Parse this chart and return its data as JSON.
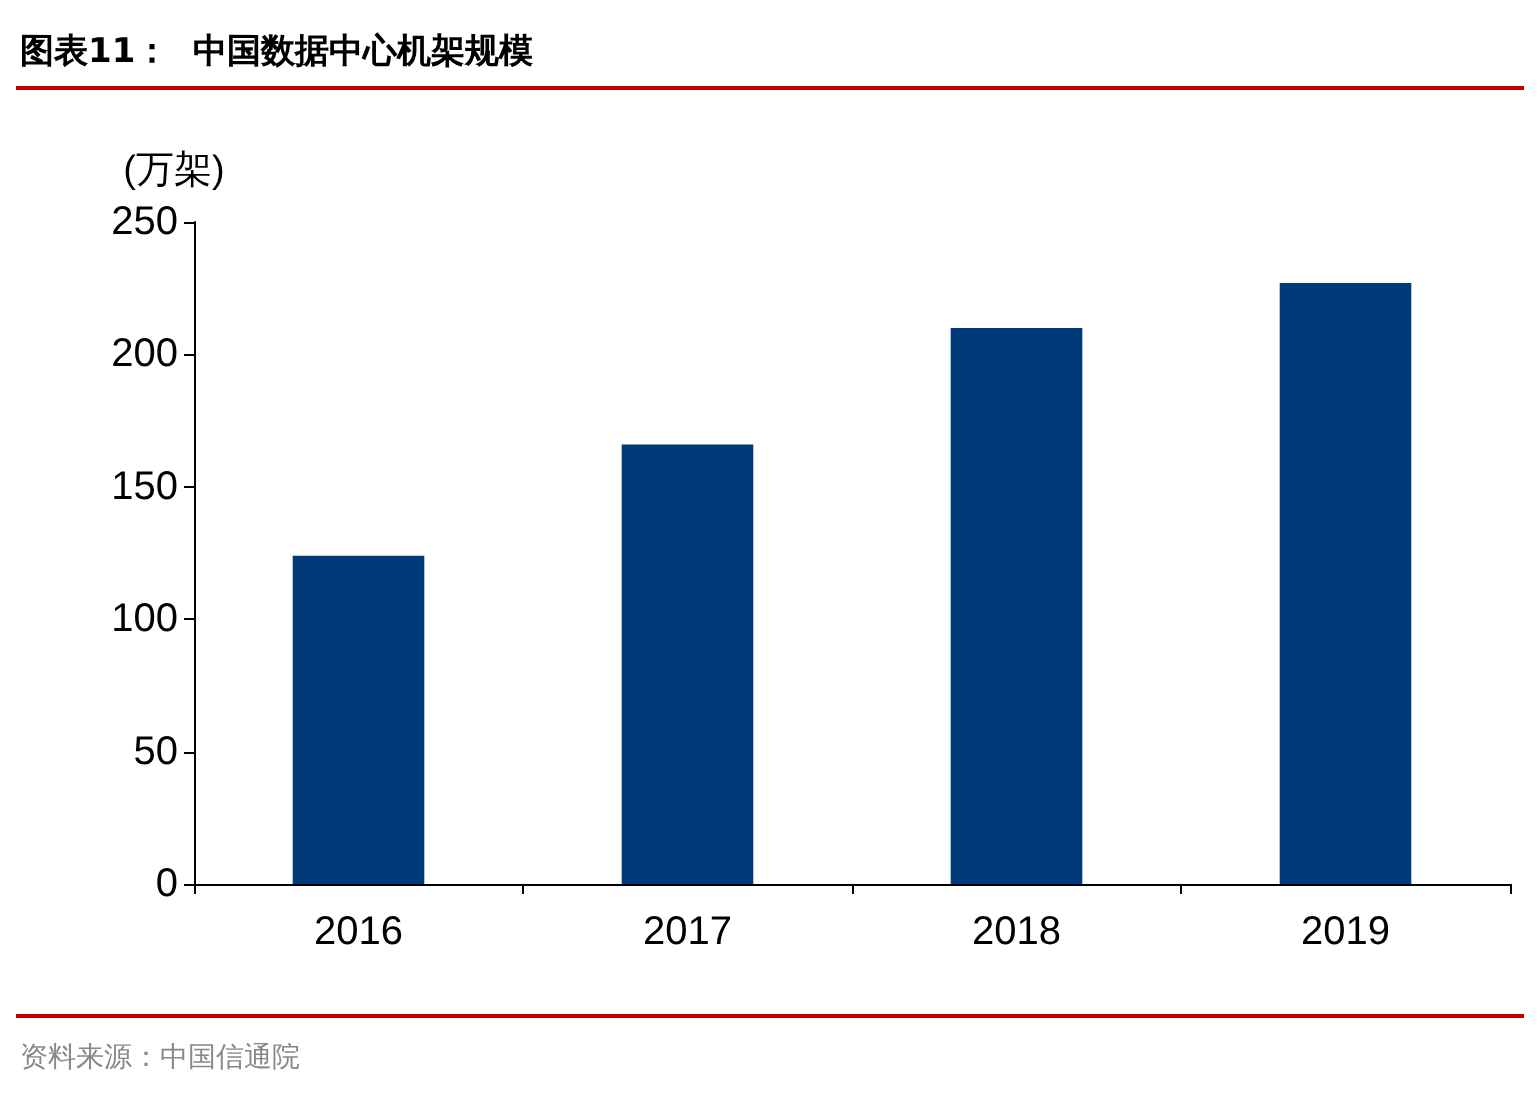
{
  "chart_data": {
    "type": "bar",
    "title": "图表11：  中国数据中心机架规模",
    "ylabel": "(万架)",
    "categories": [
      "2016",
      "2017",
      "2018",
      "2019"
    ],
    "values": [
      124,
      166,
      210,
      227
    ],
    "color": "#003a78",
    "ylim": [
      0,
      250
    ],
    "yticks": [
      0,
      50,
      100,
      150,
      200,
      250
    ],
    "grid": false,
    "annotations": [
      "资料来源：中国信通院"
    ]
  }
}
